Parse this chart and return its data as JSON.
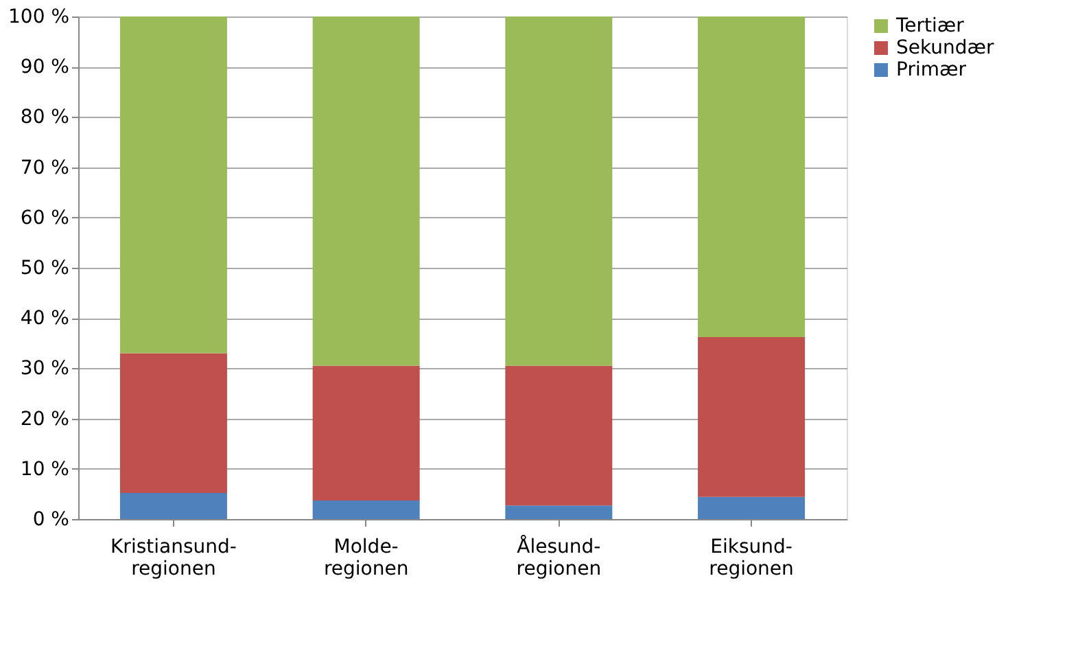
{
  "chart_data": {
    "type": "bar",
    "stacked": true,
    "categories": [
      "Kristiansund-regionen",
      "Molde-regionen",
      "Ålesund-regionen",
      "Eiksund-regionen"
    ],
    "series": [
      {
        "name": "Primær",
        "color": "#4f81bd",
        "values": [
          5.2,
          3.7,
          2.7,
          4.4
        ]
      },
      {
        "name": "Sekundær",
        "color": "#c0504d",
        "values": [
          27.8,
          26.8,
          27.8,
          31.8
        ]
      },
      {
        "name": "Tertiær",
        "color": "#9bbb59",
        "values": [
          67.0,
          69.5,
          69.5,
          63.8
        ]
      }
    ],
    "ylim": [
      0,
      100
    ],
    "yticks": [
      {
        "value": 0,
        "label": "0 %"
      },
      {
        "value": 10,
        "label": "10 %"
      },
      {
        "value": 20,
        "label": "20 %"
      },
      {
        "value": 30,
        "label": "30 %"
      },
      {
        "value": 40,
        "label": "40 %"
      },
      {
        "value": 50,
        "label": "50 %"
      },
      {
        "value": 60,
        "label": "60 %"
      },
      {
        "value": 70,
        "label": "70 %"
      },
      {
        "value": 80,
        "label": "80 %"
      },
      {
        "value": 90,
        "label": "90 %"
      },
      {
        "value": 100,
        "label": "100 %"
      }
    ],
    "grid": "y",
    "legend": "right"
  }
}
